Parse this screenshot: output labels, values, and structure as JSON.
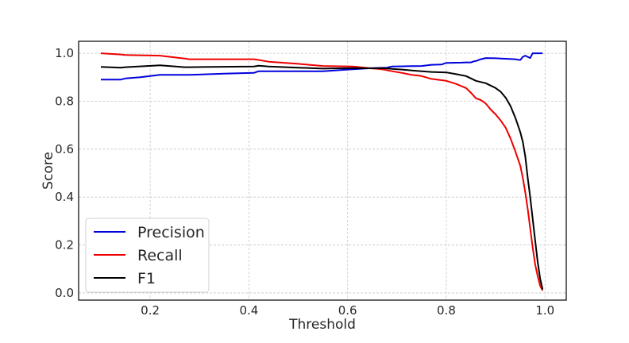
{
  "chart_data": {
    "type": "line",
    "title": "",
    "xlabel": "Threshold",
    "ylabel": "Score",
    "xlim": [
      0.055,
      1.043
    ],
    "ylim": [
      -0.03,
      1.05
    ],
    "xticks": [
      0.2,
      0.4,
      0.6,
      0.8,
      1.0
    ],
    "xtick_labels": [
      "0.2",
      "0.4",
      "0.6",
      "0.8",
      "1.0"
    ],
    "yticks": [
      0.0,
      0.2,
      0.4,
      0.6,
      0.8,
      1.0
    ],
    "ytick_labels": [
      "0.0",
      "0.2",
      "0.4",
      "0.6",
      "0.8",
      "1.0"
    ],
    "grid": true,
    "legend_position": "lower-left",
    "series": [
      {
        "name": "Precision",
        "color": "#0000dd",
        "x": [
          0.1,
          0.14,
          0.15,
          0.18,
          0.22,
          0.28,
          0.35,
          0.41,
          0.42,
          0.55,
          0.6,
          0.65,
          0.68,
          0.69,
          0.72,
          0.75,
          0.77,
          0.79,
          0.8,
          0.83,
          0.84,
          0.85,
          0.855,
          0.86,
          0.87,
          0.88,
          0.9,
          0.92,
          0.94,
          0.945,
          0.95,
          0.955,
          0.96,
          0.965,
          0.97,
          0.975,
          0.98,
          0.99,
          0.995
        ],
        "y": [
          0.89,
          0.89,
          0.895,
          0.9,
          0.91,
          0.91,
          0.915,
          0.918,
          0.925,
          0.925,
          0.932,
          0.938,
          0.94,
          0.945,
          0.946,
          0.947,
          0.952,
          0.953,
          0.96,
          0.961,
          0.962,
          0.962,
          0.966,
          0.968,
          0.975,
          0.98,
          0.979,
          0.977,
          0.975,
          0.973,
          0.972,
          0.985,
          0.99,
          0.985,
          0.98,
          1.0,
          1.0,
          1.0,
          1.0
        ]
      },
      {
        "name": "Recall",
        "color": "#ee0000",
        "x": [
          0.1,
          0.14,
          0.15,
          0.22,
          0.27,
          0.28,
          0.41,
          0.42,
          0.44,
          0.5,
          0.55,
          0.61,
          0.65,
          0.67,
          0.69,
          0.71,
          0.73,
          0.75,
          0.77,
          0.8,
          0.82,
          0.84,
          0.85,
          0.86,
          0.87,
          0.88,
          0.89,
          0.9,
          0.91,
          0.92,
          0.93,
          0.94,
          0.945,
          0.95,
          0.955,
          0.96,
          0.965,
          0.97,
          0.975,
          0.98,
          0.985,
          0.99,
          0.995
        ],
        "y": [
          1.0,
          0.995,
          0.993,
          0.99,
          0.978,
          0.975,
          0.975,
          0.972,
          0.965,
          0.956,
          0.947,
          0.945,
          0.937,
          0.933,
          0.925,
          0.918,
          0.91,
          0.905,
          0.893,
          0.885,
          0.872,
          0.855,
          0.835,
          0.812,
          0.805,
          0.79,
          0.765,
          0.745,
          0.72,
          0.69,
          0.645,
          0.59,
          0.56,
          0.53,
          0.48,
          0.42,
          0.35,
          0.27,
          0.19,
          0.12,
          0.07,
          0.03,
          0.01
        ]
      },
      {
        "name": "F1",
        "color": "#000000",
        "x": [
          0.1,
          0.14,
          0.15,
          0.22,
          0.27,
          0.28,
          0.41,
          0.42,
          0.44,
          0.5,
          0.55,
          0.61,
          0.65,
          0.67,
          0.69,
          0.71,
          0.73,
          0.75,
          0.77,
          0.8,
          0.82,
          0.84,
          0.85,
          0.86,
          0.87,
          0.88,
          0.89,
          0.9,
          0.91,
          0.92,
          0.93,
          0.94,
          0.945,
          0.95,
          0.955,
          0.96,
          0.965,
          0.97,
          0.975,
          0.98,
          0.985,
          0.99,
          0.995
        ],
        "y": [
          0.943,
          0.94,
          0.942,
          0.95,
          0.942,
          0.942,
          0.945,
          0.948,
          0.945,
          0.94,
          0.936,
          0.938,
          0.937,
          0.938,
          0.935,
          0.932,
          0.928,
          0.925,
          0.922,
          0.92,
          0.913,
          0.905,
          0.895,
          0.885,
          0.88,
          0.875,
          0.865,
          0.855,
          0.84,
          0.815,
          0.78,
          0.73,
          0.7,
          0.67,
          0.63,
          0.57,
          0.48,
          0.4,
          0.31,
          0.22,
          0.13,
          0.06,
          0.015
        ]
      }
    ]
  }
}
